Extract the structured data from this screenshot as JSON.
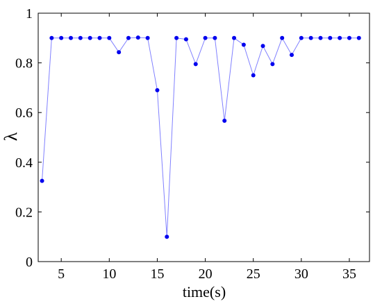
{
  "chart_data": {
    "type": "line",
    "title": "",
    "xlabel": "time(s)",
    "ylabel": "λ",
    "ylabel_accent": "~",
    "xlim": [
      2.6,
      37.1
    ],
    "ylim": [
      0,
      1
    ],
    "xticks": [
      5,
      10,
      15,
      20,
      25,
      30,
      35
    ],
    "yticks": [
      0,
      0.2,
      0.4,
      0.6,
      0.8,
      1
    ],
    "xtick_labels": [
      "5",
      "10",
      "15",
      "20",
      "25",
      "30",
      "35"
    ],
    "ytick_labels": [
      "0",
      "0.2",
      "0.4",
      "0.6",
      "0.8",
      "1"
    ],
    "grid": false,
    "line_color": "#8080ff",
    "marker_color": "#0000ee",
    "series": [
      {
        "x": [
          3,
          4,
          5,
          6,
          7,
          8,
          9,
          10,
          11,
          12,
          13,
          14,
          15,
          16,
          17,
          18,
          19,
          20,
          21,
          22,
          23,
          24,
          25,
          26,
          27,
          28,
          29,
          30,
          31,
          32,
          33,
          34,
          35,
          36
        ],
        "values": [
          0.325,
          0.9,
          0.9,
          0.9,
          0.9,
          0.9,
          0.9,
          0.9,
          0.843,
          0.9,
          0.902,
          0.9,
          0.69,
          0.1,
          0.9,
          0.895,
          0.795,
          0.9,
          0.9,
          0.567,
          0.9,
          0.873,
          0.75,
          0.868,
          0.795,
          0.9,
          0.832,
          0.9,
          0.9,
          0.9,
          0.9,
          0.9,
          0.9,
          0.9
        ]
      }
    ]
  }
}
